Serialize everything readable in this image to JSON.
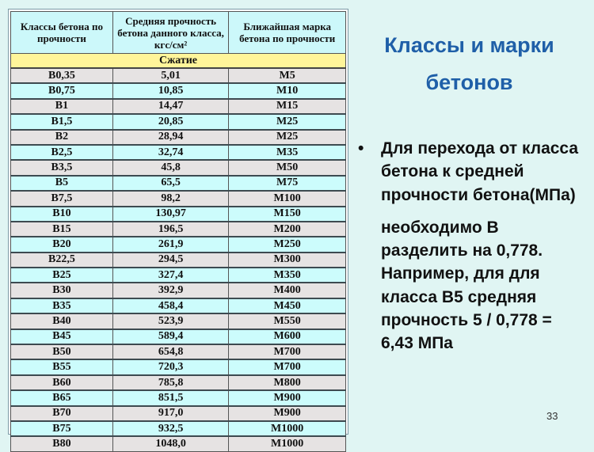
{
  "table": {
    "headers": [
      "Классы бетона по прочности",
      "Средняя прочность бетона данного класса, кгс/см²",
      "Ближайшая марка бетона по прочности"
    ],
    "section": "Сжатие",
    "rows": [
      [
        "B0,35",
        "5,01",
        "M5"
      ],
      [
        "B0,75",
        "10,85",
        "M10"
      ],
      [
        "B1",
        "14,47",
        "M15"
      ],
      [
        "B1,5",
        "20,85",
        "M25"
      ],
      [
        "B2",
        "28,94",
        "M25"
      ],
      [
        "B2,5",
        "32,74",
        "M35"
      ],
      [
        "B3,5",
        "45,8",
        "M50"
      ],
      [
        "B5",
        "65,5",
        "M75"
      ],
      [
        "B7,5",
        "98,2",
        "M100"
      ],
      [
        "B10",
        "130,97",
        "M150"
      ],
      [
        "B15",
        "196,5",
        "M200"
      ],
      [
        "B20",
        "261,9",
        "M250"
      ],
      [
        "B22,5",
        "294,5",
        "M300"
      ],
      [
        "B25",
        "327,4",
        "M350"
      ],
      [
        "B30",
        "392,9",
        "M400"
      ],
      [
        "B35",
        "458,4",
        "M450"
      ],
      [
        "B40",
        "523,9",
        "M550"
      ],
      [
        "B45",
        "589,4",
        "M600"
      ],
      [
        "B50",
        "654,8",
        "M700"
      ],
      [
        "B55",
        "720,3",
        "M700"
      ],
      [
        "B60",
        "785,8",
        "M800"
      ],
      [
        "B65",
        "851,5",
        "M900"
      ],
      [
        "B70",
        "917,0",
        "M900"
      ],
      [
        "B75",
        "932,5",
        "M1000"
      ],
      [
        "B80",
        "1048,0",
        "M1000"
      ]
    ]
  },
  "title": "Классы и марки бетонов",
  "bullet": {
    "symbol": "•",
    "paragraph1": "Для перехода от класса бетона к средней прочности бетона(МПа)",
    "paragraph2": "необходимо В разделить на 0,778. Например, для для класса В5 средняя прочность 5 / 0,778 = 6,43 МПа"
  },
  "slide_number": "33",
  "colors": {
    "title": "#1f5fa8",
    "background": "#e0f5f3",
    "header": "#ccf8fa",
    "section": "#fff59a",
    "row_odd": "#ccfcfc",
    "row_even": "#e6e3e3"
  }
}
